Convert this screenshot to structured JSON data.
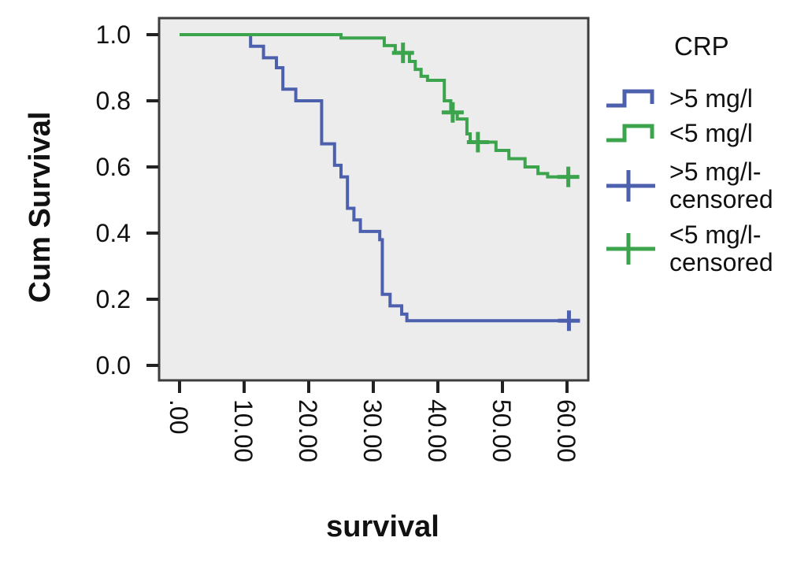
{
  "chart_data": {
    "type": "line",
    "subtype": "kaplan_meier_step",
    "title": "",
    "xlabel": "survival",
    "ylabel": "Cum Survival",
    "xlim": [
      0,
      63.3
    ],
    "ylim": [
      0,
      1.05
    ],
    "grid": false,
    "background": "#ffffff",
    "plot_background": "#ececec",
    "frame_color": "#3d3d3d",
    "tick_color": "#222222",
    "text_color": "#111111",
    "x_ticks": [
      {
        "value": 0,
        "label": ".00"
      },
      {
        "value": 10,
        "label": "10.00"
      },
      {
        "value": 20,
        "label": "20.00"
      },
      {
        "value": 30,
        "label": "30.00"
      },
      {
        "value": 40,
        "label": "40.00"
      },
      {
        "value": 50,
        "label": "50.00"
      },
      {
        "value": 60,
        "label": "60.00"
      }
    ],
    "y_ticks": [
      {
        "value": 1.0,
        "label": "1.0"
      },
      {
        "value": 0.8,
        "label": "0.8"
      },
      {
        "value": 0.6,
        "label": "0.6"
      },
      {
        "value": 0.4,
        "label": "0.4"
      },
      {
        "value": 0.2,
        "label": "0.2"
      },
      {
        "value": 0.0,
        "label": "0.0"
      }
    ],
    "legend": {
      "title": "CRP",
      "position": "right",
      "items": [
        {
          "name": "gt5",
          "lines": [
            ">5 mg/l"
          ],
          "marker": "step",
          "color": "#4c60ae"
        },
        {
          "name": "lt5",
          "lines": [
            "<5 mg/l"
          ],
          "marker": "step",
          "color": "#3ba44c"
        },
        {
          "name": "gt5-censored",
          "lines": [
            ">5 mg/l-",
            "censored"
          ],
          "marker": "plus",
          "color": "#4c60ae"
        },
        {
          "name": "lt5-censored",
          "lines": [
            "<5 mg/l-",
            "censored"
          ],
          "marker": "plus",
          "color": "#3ba44c"
        }
      ]
    },
    "series": [
      {
        "name": ">5 mg/l",
        "color": "#4c60ae",
        "steps": [
          [
            0,
            1.0
          ],
          [
            11,
            0.965
          ],
          [
            13,
            0.93
          ],
          [
            15,
            0.9
          ],
          [
            16,
            0.835
          ],
          [
            18,
            0.8
          ],
          [
            22,
            0.67
          ],
          [
            24,
            0.605
          ],
          [
            25,
            0.57
          ],
          [
            26,
            0.475
          ],
          [
            27,
            0.44
          ],
          [
            28,
            0.405
          ],
          [
            31,
            0.38
          ],
          [
            31.4,
            0.215
          ],
          [
            32.6,
            0.18
          ],
          [
            34.4,
            0.155
          ],
          [
            35.2,
            0.135
          ]
        ],
        "end_time": 62,
        "censored": [
          [
            60.3,
            0.135
          ]
        ]
      },
      {
        "name": "<5 mg/l",
        "color": "#3ba44c",
        "steps": [
          [
            0,
            1.0
          ],
          [
            25,
            0.99
          ],
          [
            31.7,
            0.967
          ],
          [
            33.4,
            0.945
          ],
          [
            35.6,
            0.919
          ],
          [
            36.5,
            0.895
          ],
          [
            37.4,
            0.874
          ],
          [
            38.4,
            0.862
          ],
          [
            41,
            0.8
          ],
          [
            42,
            0.765
          ],
          [
            43,
            0.745
          ],
          [
            44.5,
            0.7
          ],
          [
            45,
            0.675
          ],
          [
            49,
            0.65
          ],
          [
            51,
            0.625
          ],
          [
            53.5,
            0.6
          ],
          [
            55.5,
            0.58
          ],
          [
            57,
            0.57
          ]
        ],
        "end_time": 61.5,
        "censored": [
          [
            34.6,
            0.945
          ],
          [
            42.3,
            0.765
          ],
          [
            46.2,
            0.675
          ],
          [
            60.2,
            0.57
          ]
        ]
      }
    ]
  }
}
